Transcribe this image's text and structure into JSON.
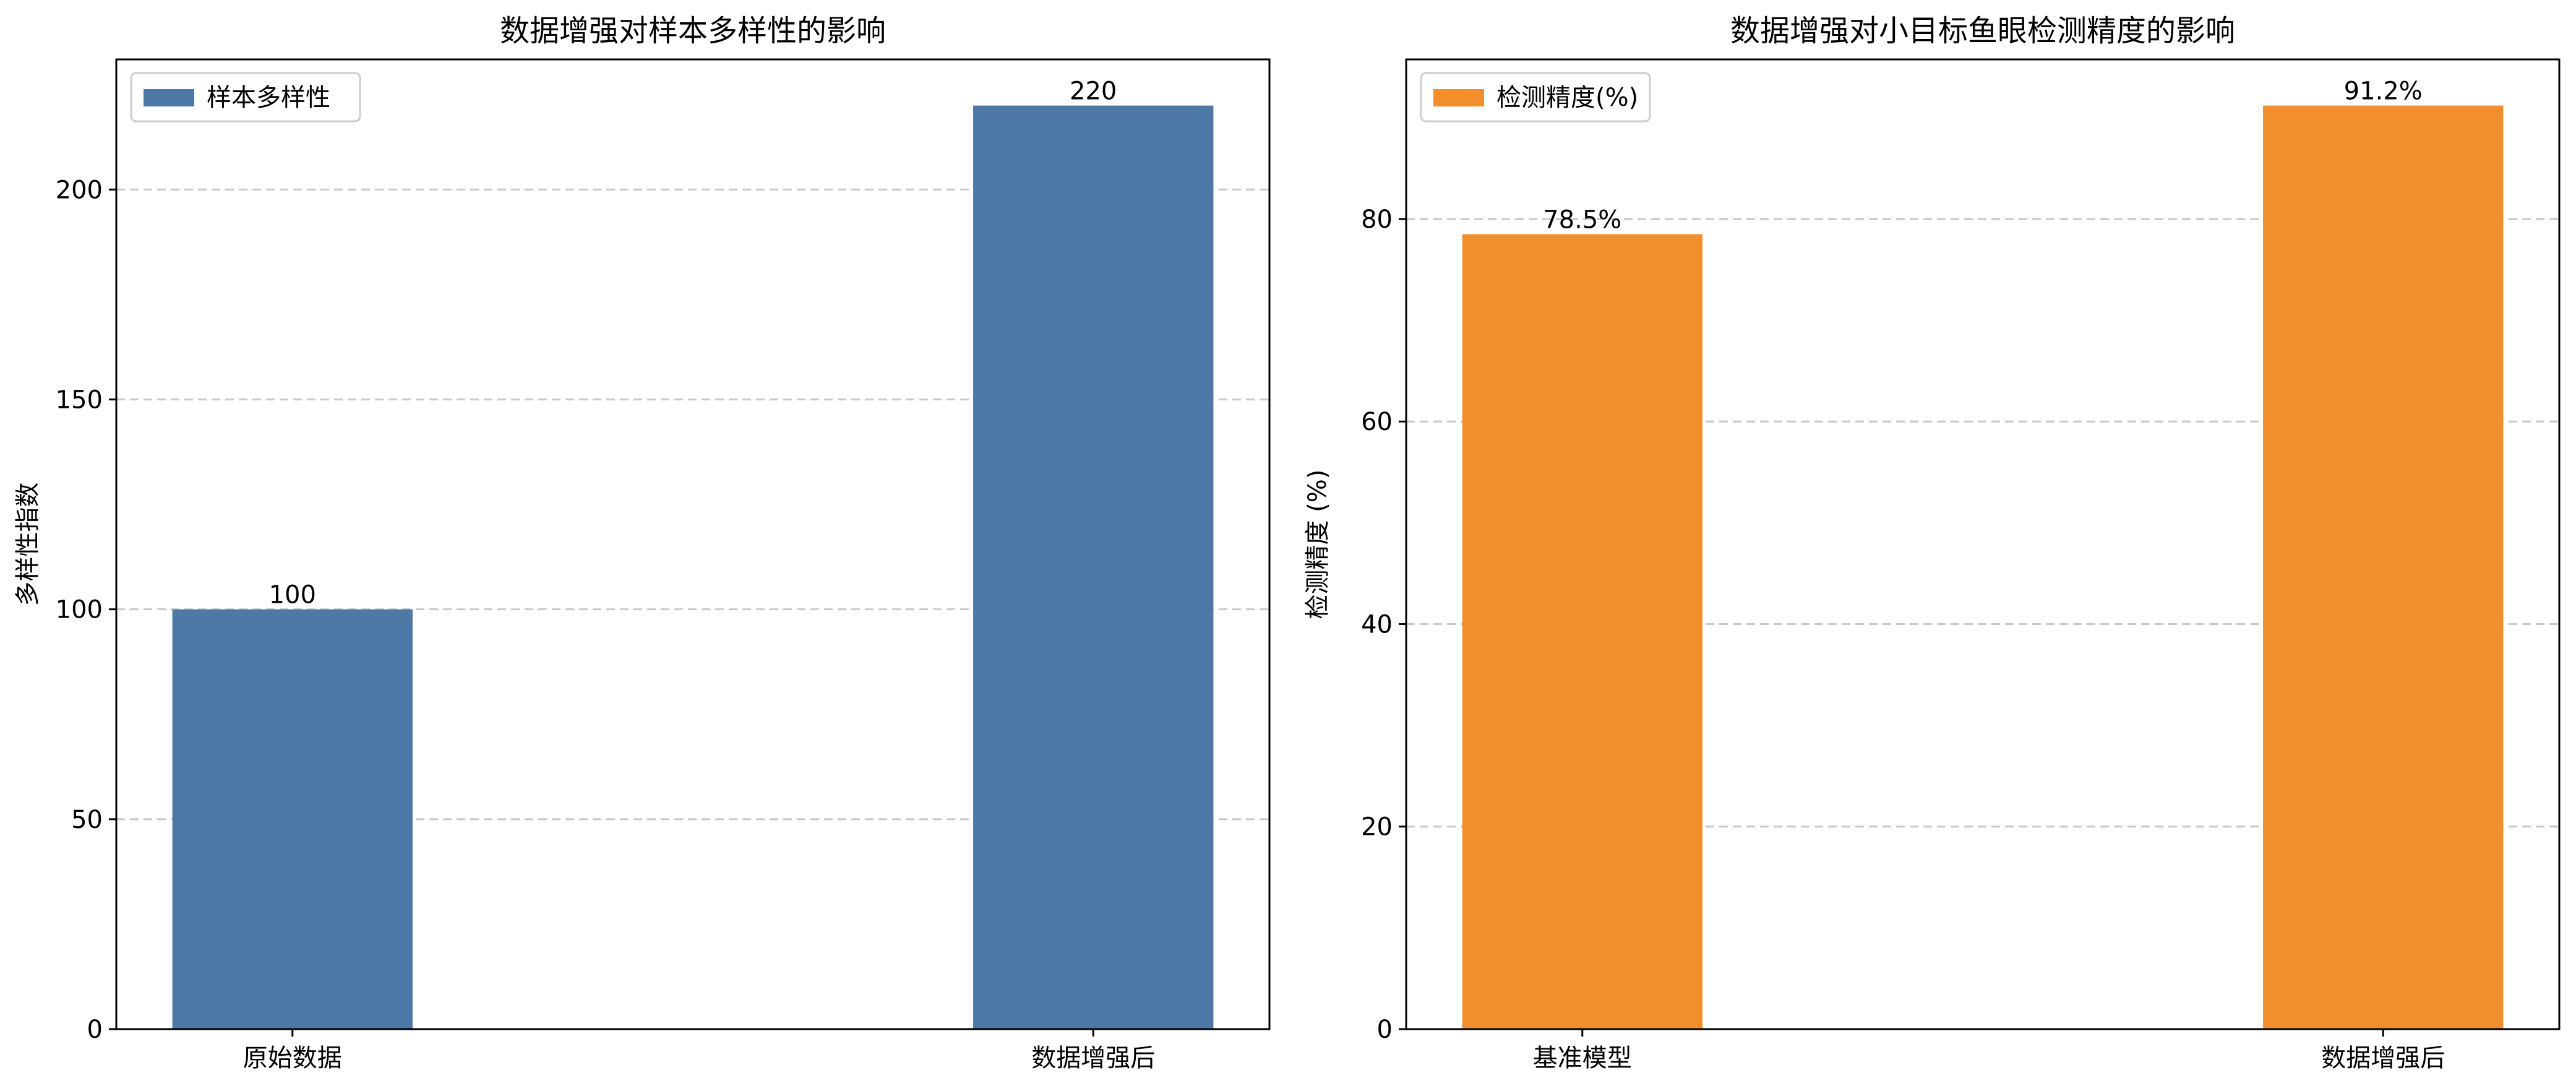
{
  "chart_data": [
    {
      "type": "bar",
      "title": "数据增强对样本多样性的影响",
      "xlabel": "",
      "ylabel": "多样性指数",
      "categories": [
        "原始数据",
        "数据增强后"
      ],
      "series": [
        {
          "name": "样本多样性",
          "values": [
            100,
            220
          ],
          "color": "#4e79a7"
        }
      ],
      "data_labels": [
        "100",
        "220"
      ],
      "ylim": [
        0,
        231
      ],
      "yticks": [
        0,
        50,
        100,
        150,
        200
      ],
      "grid": "y-dashed",
      "legend": "top-left"
    },
    {
      "type": "bar",
      "title": "数据增强对小目标鱼眼检测精度的影响",
      "xlabel": "",
      "ylabel": "检测精度 (%)",
      "categories": [
        "基准模型",
        "数据增强后"
      ],
      "series": [
        {
          "name": "检测精度(%)",
          "values": [
            78.5,
            91.2
          ],
          "color": "#f28e2b"
        }
      ],
      "data_labels": [
        "78.5%",
        "91.2%"
      ],
      "ylim": [
        0,
        95.76
      ],
      "yticks": [
        0,
        20,
        40,
        60,
        80
      ],
      "grid": "y-dashed",
      "legend": "top-left"
    }
  ]
}
